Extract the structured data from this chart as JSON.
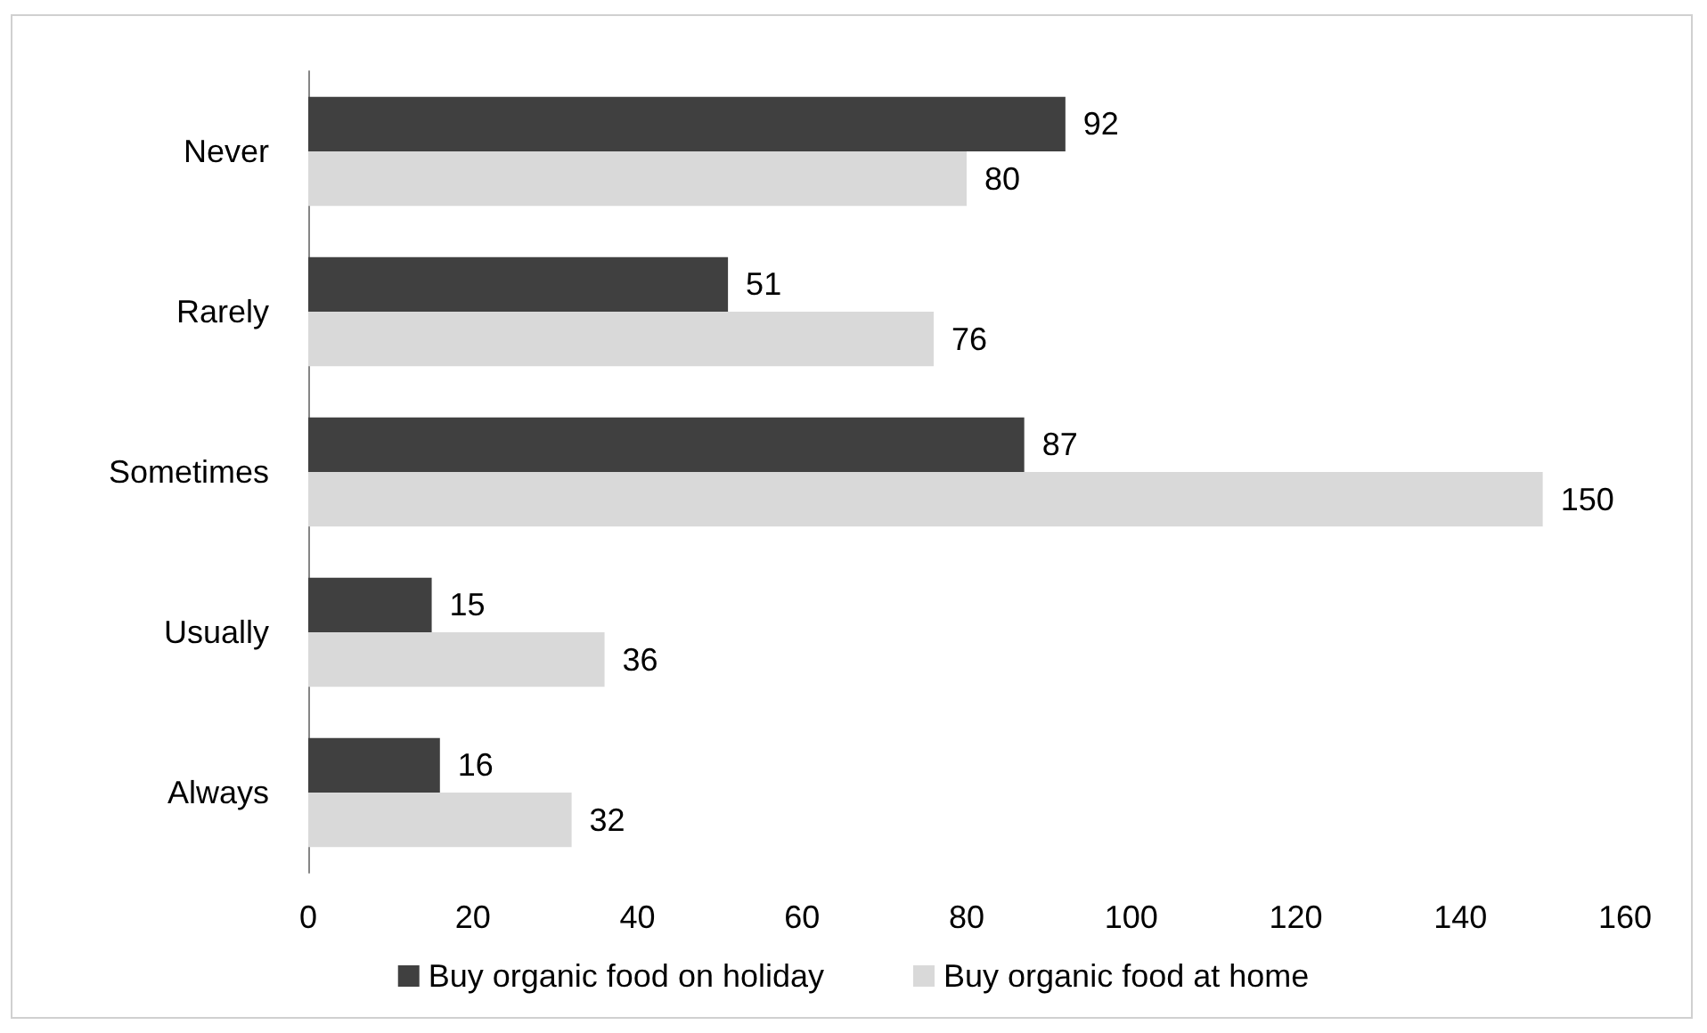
{
  "chart_data": {
    "type": "bar",
    "orientation": "horizontal",
    "categories": [
      "Never",
      "Rarely",
      "Sometimes",
      "Usually",
      "Always"
    ],
    "series": [
      {
        "name": "Buy organic food on holiday",
        "color": "#404040",
        "values": [
          92,
          51,
          87,
          15,
          16
        ]
      },
      {
        "name": "Buy organic food at home",
        "color": "#d9d9d9",
        "values": [
          80,
          76,
          150,
          36,
          32
        ]
      }
    ],
    "xlim": [
      0,
      160
    ],
    "xticks": [
      0,
      20,
      40,
      60,
      80,
      100,
      120,
      140,
      160
    ],
    "grid": false,
    "legend": "bottom",
    "data_labels": true
  }
}
